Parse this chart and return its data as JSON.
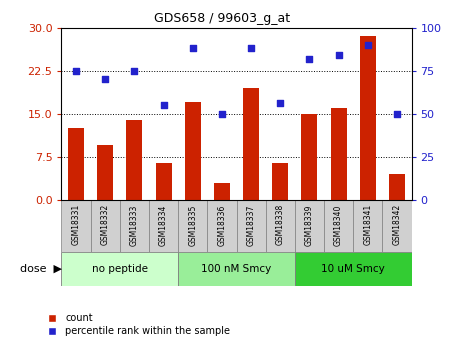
{
  "title": "GDS658 / 99603_g_at",
  "samples": [
    "GSM18331",
    "GSM18332",
    "GSM18333",
    "GSM18334",
    "GSM18335",
    "GSM18336",
    "GSM18337",
    "GSM18338",
    "GSM18339",
    "GSM18340",
    "GSM18341",
    "GSM18342"
  ],
  "bar_values": [
    12.5,
    9.5,
    14.0,
    6.5,
    17.0,
    3.0,
    19.5,
    6.5,
    15.0,
    16.0,
    28.5,
    4.5
  ],
  "dot_values": [
    75,
    70,
    75,
    55,
    88,
    50,
    88,
    56,
    82,
    84,
    90,
    50
  ],
  "bar_color": "#cc2200",
  "dot_color": "#2222cc",
  "ylim_left": [
    0,
    30
  ],
  "ylim_right": [
    0,
    100
  ],
  "yticks_left": [
    0,
    7.5,
    15,
    22.5,
    30
  ],
  "yticks_right": [
    0,
    25,
    50,
    75,
    100
  ],
  "hgrid_vals": [
    7.5,
    15,
    22.5
  ],
  "groups": [
    {
      "label": "no peptide",
      "start": 0,
      "end": 4,
      "color": "#ccffcc"
    },
    {
      "label": "100 nM Smcy",
      "start": 4,
      "end": 8,
      "color": "#99ee99"
    },
    {
      "label": "10 uM Smcy",
      "start": 8,
      "end": 12,
      "color": "#33cc33"
    }
  ],
  "dose_label": "dose",
  "legend_bar": "count",
  "legend_dot": "percentile rank within the sample",
  "tick_bg_color": "#d0d0d0",
  "tick_fontsize": 5.5,
  "bar_width": 0.55
}
